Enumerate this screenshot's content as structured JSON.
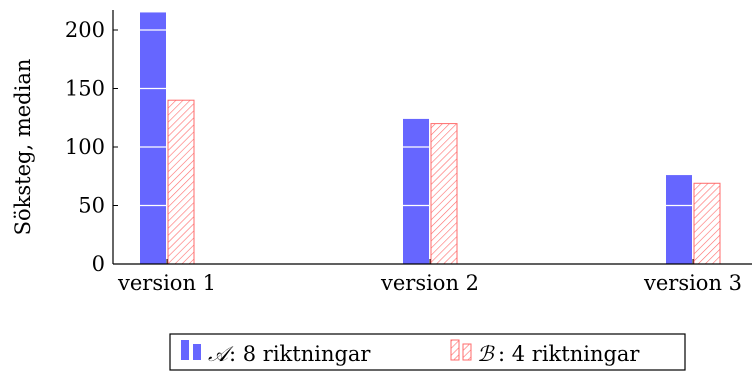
{
  "chart_data": {
    "type": "bar",
    "categories": [
      "version 1",
      "version 2",
      "version 3"
    ],
    "series": [
      {
        "name": "8 riktningar",
        "symbol": "𝒜",
        "values": [
          215,
          124,
          76
        ],
        "color": "#6666ff",
        "pattern": "solid"
      },
      {
        "name": "4 riktningar",
        "symbol": "ℬ",
        "values": [
          140,
          120,
          69
        ],
        "color": "#ff6b6b",
        "pattern": "hatch"
      }
    ],
    "title": "",
    "xlabel": "",
    "ylabel": "Söksteg, median",
    "ylim": [
      0,
      215
    ],
    "yticks": [
      0,
      50,
      100,
      150,
      200
    ],
    "grid": "inside-bars",
    "legend_position": "bottom"
  }
}
